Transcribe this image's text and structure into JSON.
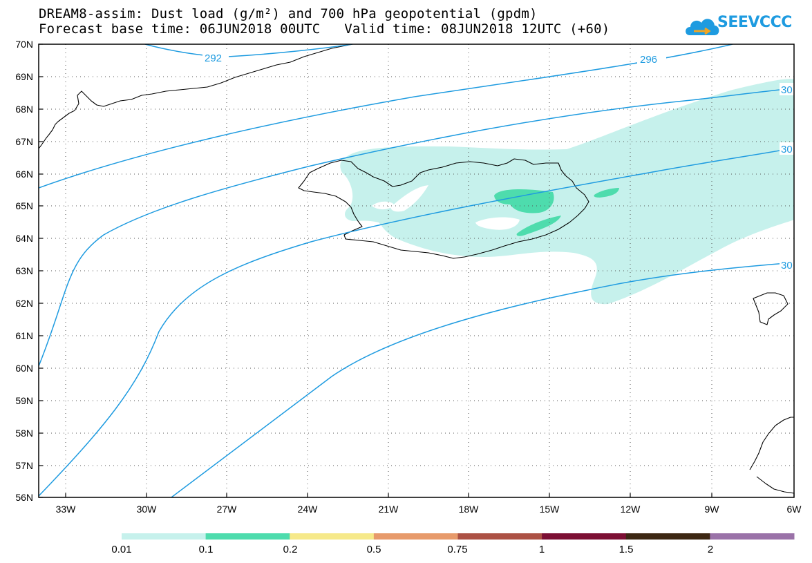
{
  "title": {
    "line1": "DREAM8-assim: Dust load (g/m²) and 700 hPa geopotential (gpdm)",
    "line2": "Forecast base time: 06JUN2018 00UTC   Valid time: 08JUN2018 12UTC (+60)"
  },
  "logo": {
    "text": "SEEVCCC",
    "icon": "cloud-icon"
  },
  "map": {
    "lat_labels": [
      "70N",
      "69N",
      "68N",
      "67N",
      "66N",
      "65N",
      "64N",
      "63N",
      "62N",
      "61N",
      "60N",
      "59N",
      "58N",
      "57N",
      "56N"
    ],
    "lon_labels": [
      "33W",
      "30W",
      "27W",
      "24W",
      "21W",
      "18W",
      "15W",
      "12W",
      "9W",
      "6W"
    ],
    "contour_labels": [
      "292",
      "296",
      "30",
      "30",
      "30"
    ]
  },
  "colorbar": {
    "labels": [
      "0.01",
      "0.1",
      "0.2",
      "0.5",
      "0.75",
      "1",
      "1.5",
      "2"
    ],
    "colors": [
      "#c6f1ec",
      "#4edcad",
      "#f6e98a",
      "#e79a6b",
      "#ac5144",
      "#7c0f34",
      "#3d2713",
      "#9a72a8"
    ]
  }
}
